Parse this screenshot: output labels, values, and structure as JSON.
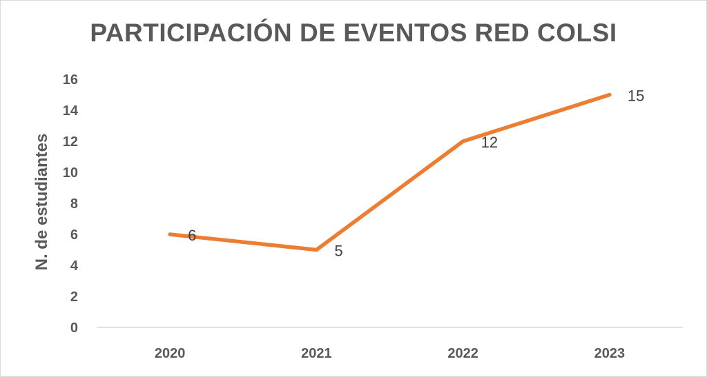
{
  "chart_data": {
    "type": "line",
    "title": "PARTICIPACIÓN DE EVENTOS RED COLSI",
    "xlabel": "",
    "ylabel": "N. de estudiantes",
    "categories": [
      "2020",
      "2021",
      "2022",
      "2023"
    ],
    "values": [
      6,
      5,
      12,
      15
    ],
    "ylim": [
      0,
      16
    ],
    "yticks": [
      0,
      2,
      4,
      6,
      8,
      10,
      12,
      14,
      16
    ],
    "grid": false,
    "data_labels": true,
    "line_color": "#ED7D31",
    "axis_color": "#d9d9d9"
  }
}
